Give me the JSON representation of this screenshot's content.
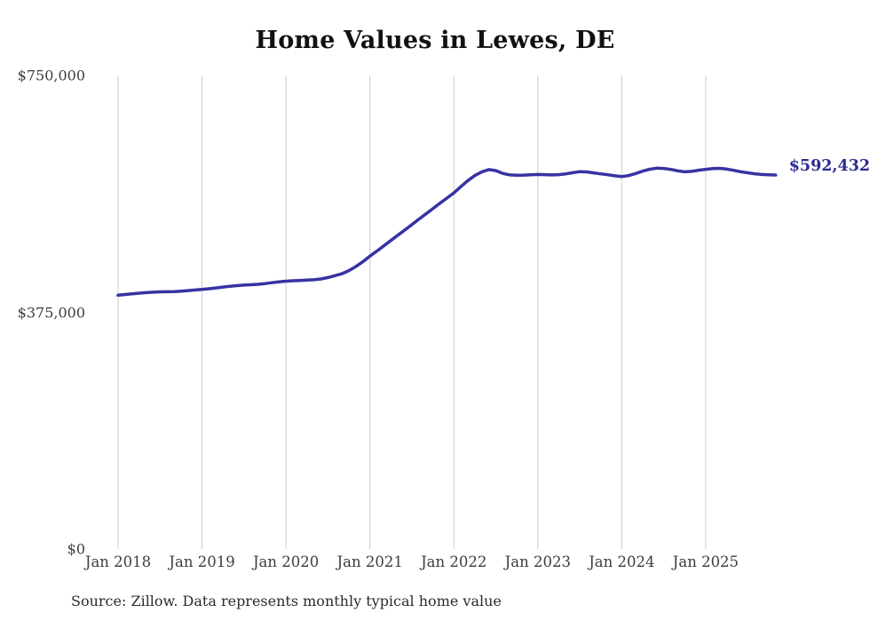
{
  "chart_data": {
    "type": "line",
    "title": "Home Values in Lewes, DE",
    "source": "Source: Zillow. Data represents monthly typical home value",
    "end_label": "$592,432",
    "latest_value": 592432,
    "xlabel": "",
    "ylabel": "",
    "ylim": [
      0,
      750000
    ],
    "grid": "vertical-only",
    "legend_position": "none",
    "colors": {
      "line": "#3733a3",
      "end_label": "#2d2b8e",
      "grid": "#cccccc",
      "tick_text": "#3d3d3d",
      "title_text": "#111111",
      "background": "#ffffff"
    },
    "y_ticks": [
      {
        "label": "$750,000",
        "value": 750000
      },
      {
        "label": "$375,000",
        "value": 375000
      },
      {
        "label": "$0",
        "value": 0
      }
    ],
    "x_ticks": [
      "Jan 2018",
      "Jan 2019",
      "Jan 2020",
      "Jan 2021",
      "Jan 2022",
      "Jan 2023",
      "Jan 2024",
      "Jan 2025"
    ],
    "series": [
      {
        "name": "Typical home value (monthly)",
        "start_month": "2018-01",
        "end_month": "2025-11",
        "values": [
          402000,
          403100,
          404200,
          405200,
          406100,
          406800,
          407300,
          407500,
          407800,
          408400,
          409400,
          410300,
          411200,
          412300,
          413600,
          415000,
          416200,
          417200,
          418000,
          418600,
          419300,
          420400,
          421800,
          423100,
          424300,
          424900,
          425400,
          425900,
          426500,
          427800,
          430000,
          433000,
          436000,
          441000,
          447500,
          455000,
          464000,
          472000,
          480300,
          488700,
          497100,
          505500,
          513900,
          522300,
          530700,
          539100,
          547600,
          555800,
          564000,
          574000,
          583500,
          591500,
          597500,
          601000,
          599500,
          595000,
          592500,
          592000,
          592300,
          592800,
          593200,
          593000,
          592600,
          593000,
          594200,
          596000,
          597800,
          597300,
          595800,
          594300,
          592800,
          591200,
          590000,
          591600,
          594800,
          598600,
          601600,
          603200,
          602800,
          601200,
          599000,
          597400,
          598200,
          600000,
          601400,
          602600,
          603000,
          601800,
          599800,
          597600,
          595900,
          594400,
          593300,
          592800,
          592432
        ]
      }
    ]
  }
}
